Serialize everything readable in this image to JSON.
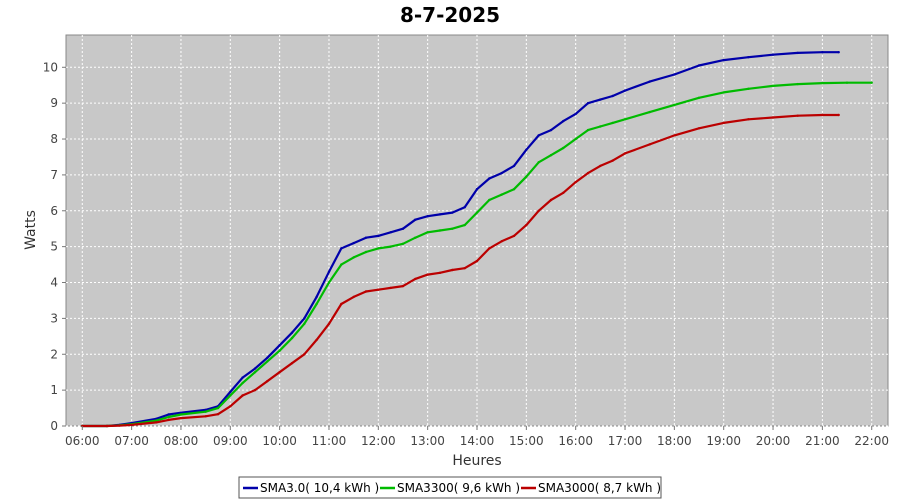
{
  "chart_data": {
    "type": "line",
    "title": "8-7-2025",
    "xlabel": "Heures",
    "ylabel": "Watts",
    "xlim": [
      5.67,
      22.33
    ],
    "ylim": [
      0,
      10.9
    ],
    "x_ticks": [
      "06:00",
      "07:00",
      "08:00",
      "09:00",
      "10:00",
      "11:00",
      "12:00",
      "13:00",
      "14:00",
      "15:00",
      "16:00",
      "17:00",
      "18:00",
      "19:00",
      "20:00",
      "21:00",
      "22:00"
    ],
    "y_ticks": [
      "0",
      "1",
      "2",
      "3",
      "4",
      "5",
      "6",
      "7",
      "8",
      "9",
      "10"
    ],
    "grid": true,
    "legend_position": "bottom",
    "series": [
      {
        "name": "SMA3.0( 10,4 kWh )",
        "color": "#0000aa",
        "x": [
          6.0,
          6.5,
          6.75,
          7.0,
          7.5,
          7.75,
          8.0,
          8.5,
          8.75,
          9.0,
          9.25,
          9.5,
          9.75,
          10.0,
          10.25,
          10.5,
          10.75,
          11.0,
          11.25,
          11.5,
          11.75,
          12.0,
          12.25,
          12.5,
          12.75,
          13.0,
          13.25,
          13.5,
          13.75,
          14.0,
          14.25,
          14.5,
          14.75,
          15.0,
          15.25,
          15.5,
          15.75,
          16.0,
          16.25,
          16.5,
          16.75,
          17.0,
          17.5,
          18.0,
          18.5,
          19.0,
          19.5,
          20.0,
          20.5,
          21.0,
          21.33
        ],
        "y": [
          0.0,
          0.0,
          0.03,
          0.08,
          0.2,
          0.32,
          0.37,
          0.45,
          0.55,
          0.95,
          1.35,
          1.6,
          1.9,
          2.25,
          2.6,
          3.0,
          3.6,
          4.3,
          4.95,
          5.1,
          5.25,
          5.3,
          5.4,
          5.5,
          5.75,
          5.85,
          5.9,
          5.95,
          6.1,
          6.6,
          6.9,
          7.05,
          7.25,
          7.7,
          8.1,
          8.25,
          8.5,
          8.7,
          9.0,
          9.1,
          9.2,
          9.35,
          9.6,
          9.8,
          10.05,
          10.2,
          10.28,
          10.35,
          10.4,
          10.42,
          10.42
        ]
      },
      {
        "name": "SMA3300( 9,6 kWh )",
        "color": "#00bb00",
        "x": [
          6.0,
          6.5,
          6.75,
          7.0,
          7.5,
          7.75,
          8.0,
          8.5,
          8.75,
          9.0,
          9.25,
          9.5,
          9.75,
          10.0,
          10.25,
          10.5,
          10.75,
          11.0,
          11.25,
          11.5,
          11.75,
          12.0,
          12.25,
          12.5,
          12.75,
          13.0,
          13.25,
          13.5,
          13.75,
          14.0,
          14.25,
          14.5,
          14.75,
          15.0,
          15.25,
          15.5,
          15.75,
          16.0,
          16.25,
          16.5,
          16.75,
          17.0,
          17.5,
          18.0,
          18.5,
          19.0,
          19.5,
          20.0,
          20.5,
          21.0,
          21.5,
          22.0
        ],
        "y": [
          0.0,
          0.0,
          0.02,
          0.05,
          0.15,
          0.25,
          0.32,
          0.4,
          0.5,
          0.85,
          1.2,
          1.5,
          1.8,
          2.1,
          2.45,
          2.85,
          3.4,
          4.0,
          4.5,
          4.7,
          4.85,
          4.95,
          5.0,
          5.08,
          5.25,
          5.4,
          5.45,
          5.5,
          5.6,
          5.95,
          6.3,
          6.45,
          6.6,
          6.95,
          7.35,
          7.55,
          7.75,
          8.0,
          8.25,
          8.35,
          8.45,
          8.55,
          8.75,
          8.95,
          9.15,
          9.3,
          9.4,
          9.48,
          9.53,
          9.56,
          9.57,
          9.57
        ]
      },
      {
        "name": "SMA3000( 8,7 kWh )",
        "color": "#bb0000",
        "x": [
          6.0,
          6.5,
          6.75,
          7.0,
          7.5,
          7.75,
          8.0,
          8.5,
          8.75,
          9.0,
          9.25,
          9.5,
          9.75,
          10.0,
          10.25,
          10.5,
          10.75,
          11.0,
          11.25,
          11.5,
          11.75,
          12.0,
          12.25,
          12.5,
          12.75,
          13.0,
          13.25,
          13.5,
          13.75,
          14.0,
          14.25,
          14.5,
          14.75,
          15.0,
          15.25,
          15.5,
          15.75,
          16.0,
          16.25,
          16.5,
          16.75,
          17.0,
          17.5,
          18.0,
          18.5,
          19.0,
          19.5,
          20.0,
          20.5,
          21.0,
          21.33
        ],
        "y": [
          0.0,
          0.0,
          0.01,
          0.03,
          0.1,
          0.17,
          0.22,
          0.27,
          0.33,
          0.55,
          0.85,
          1.0,
          1.25,
          1.5,
          1.75,
          2.0,
          2.4,
          2.85,
          3.4,
          3.6,
          3.75,
          3.8,
          3.85,
          3.9,
          4.1,
          4.22,
          4.27,
          4.35,
          4.4,
          4.6,
          4.95,
          5.15,
          5.3,
          5.6,
          6.0,
          6.3,
          6.5,
          6.8,
          7.05,
          7.25,
          7.4,
          7.6,
          7.85,
          8.1,
          8.3,
          8.45,
          8.55,
          8.6,
          8.65,
          8.67,
          8.67
        ]
      }
    ]
  }
}
